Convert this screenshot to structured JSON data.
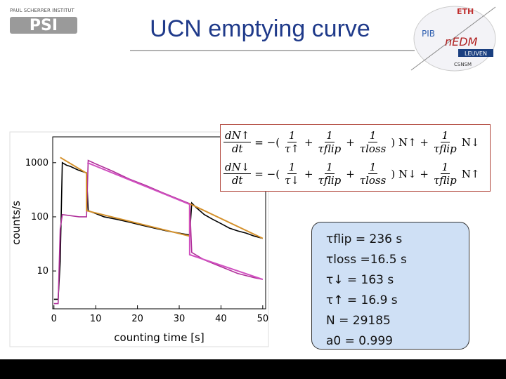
{
  "slide": {
    "title": "UCN emptying curve",
    "logo_left": {
      "line1": "PAUL SCHERRER INSTITUT",
      "line2": "PSI"
    },
    "logos_right": [
      "ETH",
      "PIB",
      "nEDM",
      "LEUVEN",
      "CSNSM"
    ],
    "equations": [
      [
        {
          "frac": [
            "dN↑",
            "dt"
          ]
        },
        "= −(",
        {
          "frac": [
            "1",
            "τ↑"
          ]
        },
        "+",
        {
          "frac": [
            "1",
            "τflip"
          ]
        },
        "+",
        {
          "frac": [
            "1",
            "τloss"
          ]
        },
        ") N↑ +",
        {
          "frac": [
            "1",
            "τflip"
          ]
        },
        "N↓"
      ],
      [
        {
          "frac": [
            "dN↓",
            "dt"
          ]
        },
        "= −(",
        {
          "frac": [
            "1",
            "τ↓"
          ]
        },
        "+",
        {
          "frac": [
            "1",
            "τflip"
          ]
        },
        "+",
        {
          "frac": [
            "1",
            "τloss"
          ]
        },
        ") N↓ +",
        {
          "frac": [
            "1",
            "τflip"
          ]
        },
        "N↑"
      ]
    ],
    "parameters": [
      "τflip = 236 s",
      "τloss =16.5 s",
      "τ↓ = 163 s",
      "τ↑ = 16.9 s",
      "N = 29185",
      "a0 = 0.999"
    ]
  },
  "chart_data": {
    "type": "line",
    "xlabel": "counting time [s]",
    "ylabel": "counts/s",
    "log_y": true,
    "xlim": [
      -0.3,
      50.7
    ],
    "ylim": [
      2,
      3000
    ],
    "xticks": [
      0,
      10,
      20,
      30,
      40,
      50
    ],
    "yticks": [
      10,
      100,
      1000
    ],
    "series": [
      {
        "color": "#000000",
        "width": 1.6,
        "x": [
          0,
          1,
          1.5,
          2,
          3,
          4,
          5,
          6,
          7,
          7.8,
          8.2,
          10,
          12,
          15,
          18,
          21,
          24,
          27,
          30,
          32.5,
          33,
          34,
          36,
          38,
          40,
          42,
          44,
          46,
          48,
          50
        ],
        "values": [
          3,
          3,
          15,
          1000,
          900,
          850,
          780,
          720,
          680,
          650,
          130,
          115,
          100,
          90,
          80,
          70,
          62,
          55,
          50,
          46,
          180,
          150,
          110,
          90,
          75,
          62,
          55,
          50,
          44,
          40
        ]
      },
      {
        "color": "#b0309a",
        "width": 1.6,
        "x": [
          0,
          1,
          1.5,
          2,
          4,
          6,
          7.8,
          8.2,
          10,
          14,
          18,
          22,
          26,
          30,
          32.5,
          33,
          36,
          40,
          44,
          48,
          50
        ],
        "values": [
          2.5,
          2.5,
          60,
          110,
          105,
          100,
          100,
          1100,
          950,
          700,
          500,
          380,
          280,
          210,
          175,
          22,
          16,
          12,
          9,
          7.5,
          7
        ]
      },
      {
        "color": "#d4902a",
        "width": 2,
        "x": [
          1.5,
          7.8,
          7.8,
          32.5,
          32.5,
          50
        ],
        "values": [
          1250,
          640,
          130,
          44,
          175,
          40
        ]
      },
      {
        "color": "#d050c0",
        "width": 2,
        "x": [
          8,
          32.5,
          32.5,
          50
        ],
        "values": [
          1000,
          170,
          20,
          7
        ]
      }
    ]
  }
}
